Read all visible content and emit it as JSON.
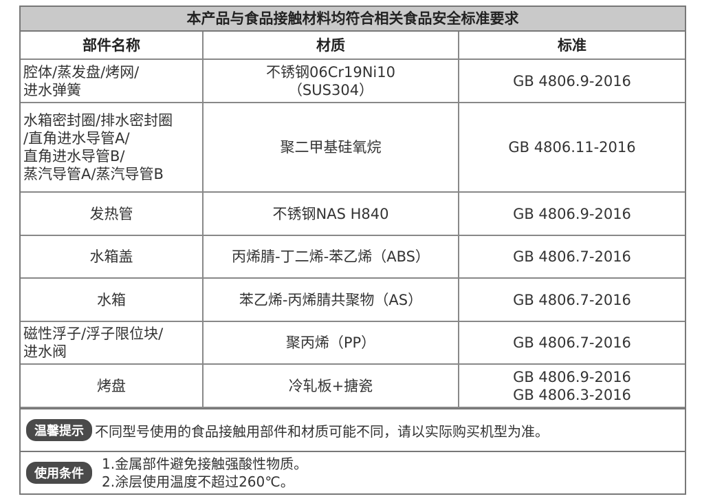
{
  "title": "本产品与食品接触材料均符合相关食品安全标准要求",
  "headers": [
    "部件名称",
    "材质",
    "标准"
  ],
  "rows": [
    {
      "part": [
        "腔体/蒸发盘/烤网/",
        "进水弹簧"
      ],
      "material": [
        "不锈钢06Cr19Ni10",
        "（SUS304）"
      ],
      "standard": [
        "GB 4806.9-2016"
      ]
    },
    {
      "part": [
        "水箱密封圈/排水密封圈",
        "/直角进水导管A/",
        "直角进水导管B/",
        "蒸汽导管A/蒸汽导管B"
      ],
      "material": [
        "聚二甲基硅氧烷"
      ],
      "standard": [
        "GB 4806.11-2016"
      ]
    },
    {
      "part": [
        "发热管"
      ],
      "material": [
        "不锈钢NAS H840"
      ],
      "standard": [
        "GB 4806.9-2016"
      ]
    },
    {
      "part": [
        "水箱盖"
      ],
      "material": [
        "丙烯腈-丁二烯-苯乙烯（ABS）"
      ],
      "standard": [
        "GB 4806.7-2016"
      ]
    },
    {
      "part": [
        "水箱"
      ],
      "material": [
        "苯乙烯-丙烯腈共聚物（AS）"
      ],
      "standard": [
        "GB 4806.7-2016"
      ]
    },
    {
      "part": [
        "磁性浮子/浮子限位块/",
        "进水阀"
      ],
      "material": [
        "聚丙烯（PP）"
      ],
      "standard": [
        "GB 4806.7-2016"
      ]
    },
    {
      "part": [
        "烤盘"
      ],
      "material": [
        "冷轧板+搪瓷"
      ],
      "standard": [
        "GB 4806.9-2016",
        "GB 4806.3-2016"
      ]
    }
  ],
  "tip": {
    "label": "温馨提示",
    "text": "不同型号使用的食品接触用部件和材质可能不同，请以实际购买机型为准。"
  },
  "conditions": {
    "label": "使用条件",
    "items": [
      "1.金属部件避免接触强酸性物质。",
      "2.涂层使用温度不超过260℃。"
    ]
  }
}
